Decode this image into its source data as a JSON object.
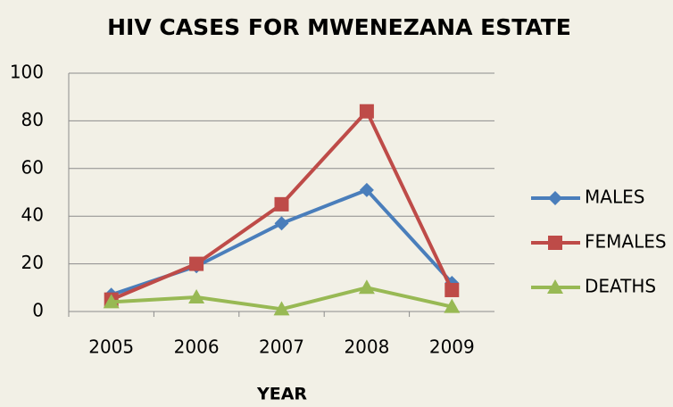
{
  "chart_data": {
    "type": "line",
    "title": "HIV CASES FOR MWENEZANA ESTATE",
    "x_label": "YEAR",
    "categories": [
      "2005",
      "2006",
      "2007",
      "2008",
      "2009"
    ],
    "series": [
      {
        "name": "MALES",
        "color": "#4a7ebb",
        "marker": "diamond",
        "values": [
          7,
          19,
          37,
          51,
          12
        ]
      },
      {
        "name": "FEMALES",
        "color": "#be4b48",
        "marker": "square",
        "values": [
          5,
          20,
          45,
          84,
          9
        ]
      },
      {
        "name": "DEATHS",
        "color": "#98b954",
        "marker": "triangle",
        "values": [
          4,
          6,
          1,
          10,
          2
        ]
      }
    ],
    "ylim": [
      0,
      100
    ],
    "yticks": [
      0,
      20,
      40,
      60,
      80,
      100
    ],
    "grid": true,
    "legend": "right"
  }
}
